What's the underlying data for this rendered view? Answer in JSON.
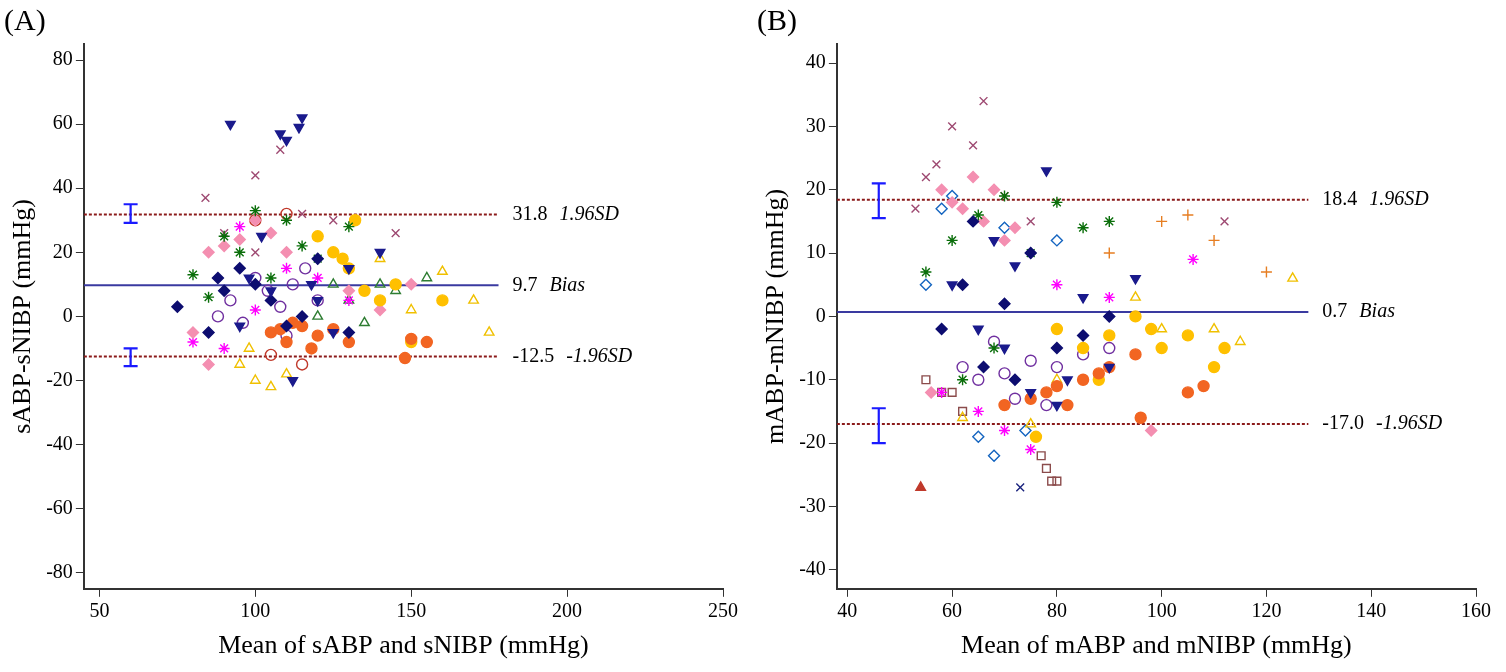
{
  "chart_data": [
    {
      "type": "scatter",
      "title": "(A)",
      "x_label": "Mean of sABP and sNIBP (mmHg)",
      "y_label": "sABP-sNIBP (mmHg)",
      "xlim": [
        45,
        250
      ],
      "xticks": [
        50,
        100,
        150,
        200,
        250
      ],
      "ylim": [
        -85,
        85
      ],
      "yticks": [
        -80,
        -60,
        -40,
        -20,
        0,
        20,
        40,
        60,
        80
      ],
      "grid": false,
      "reference_lines": [
        {
          "y": 31.8,
          "label": "31.8",
          "name": "1.96SD",
          "x_range": [
            45,
            178
          ],
          "color": "#8b1a1a",
          "line_style": "dotted"
        },
        {
          "y": 9.7,
          "label": "9.7",
          "name": "Bias",
          "x_range": [
            45,
            178
          ],
          "color": "#3a3aa0",
          "line_style": "solid"
        },
        {
          "y": -12.5,
          "label": "-12.5",
          "name": "-1.96SD",
          "x_range": [
            45,
            178
          ],
          "color": "#8b1a1a",
          "line_style": "dotted"
        }
      ],
      "error_bars": [
        {
          "x": 60,
          "low": 29.2,
          "high": 35,
          "color": "#1a1aff"
        },
        {
          "x": 60,
          "low": -15.5,
          "high": -10,
          "color": "#1a1aff"
        }
      ],
      "series": [
        {
          "color": "#1a1a8c",
          "marker": "triangle_down",
          "x": [
            92,
            108,
            110,
            115,
            114,
            112,
            105,
            98,
            120,
            130,
            125,
            140,
            102,
            95,
            118
          ],
          "values": [
            60,
            57,
            55,
            62,
            59,
            -20,
            8,
            12,
            5,
            15,
            -5,
            20,
            25,
            -3,
            10
          ]
        },
        {
          "color": "#0d0d70",
          "marker": "diamond",
          "x": [
            75,
            85,
            90,
            100,
            110,
            120,
            105,
            95,
            130,
            115,
            88
          ],
          "values": [
            3,
            -5,
            8,
            10,
            -3,
            18,
            5,
            15,
            -5,
            0,
            12
          ]
        },
        {
          "color": "#0a6e0a",
          "marker": "star",
          "x": [
            80,
            90,
            100,
            110,
            95,
            120,
            105,
            115,
            85,
            130
          ],
          "values": [
            13,
            25,
            33,
            30,
            20,
            18,
            12,
            22,
            6,
            28
          ]
        },
        {
          "color": "#f26522",
          "marker": "circle",
          "x": [
            105,
            110,
            115,
            120,
            125,
            130,
            112,
            150,
            148,
            155,
            118,
            108
          ],
          "values": [
            -5,
            -8,
            -3,
            -6,
            -4,
            -8,
            -2,
            -7,
            -13,
            -8,
            -10,
            -4
          ]
        },
        {
          "color": "#ffc000",
          "marker": "circle",
          "x": [
            120,
            125,
            130,
            135,
            140,
            128,
            132,
            145,
            150,
            160
          ],
          "values": [
            25,
            20,
            15,
            8,
            5,
            18,
            30,
            10,
            -8,
            5
          ]
        },
        {
          "color": "#f48fb1",
          "marker": "diamond",
          "x": [
            85,
            90,
            95,
            100,
            105,
            110,
            130,
            140,
            150,
            80,
            85
          ],
          "values": [
            20,
            22,
            24,
            30,
            26,
            20,
            8,
            2,
            10,
            -5,
            -15
          ]
        },
        {
          "color": "#7030a0",
          "marker": "circle_open",
          "x": [
            88,
            92,
            96,
            100,
            104,
            108,
            112,
            116,
            120,
            110
          ],
          "values": [
            0,
            5,
            -2,
            12,
            8,
            3,
            10,
            15,
            5,
            -6
          ]
        },
        {
          "color": "#f0c000",
          "marker": "triangle_open",
          "x": [
            95,
            100,
            105,
            110,
            150,
            160,
            170,
            175,
            98,
            140
          ],
          "values": [
            -15,
            -20,
            -22,
            -18,
            2,
            14,
            5,
            -5,
            -10,
            18
          ]
        },
        {
          "color": "#ff00ff",
          "marker": "asterisk",
          "x": [
            80,
            90,
            100,
            110,
            120,
            95,
            130
          ],
          "values": [
            -8,
            -10,
            2,
            15,
            12,
            28,
            5
          ]
        },
        {
          "color": "#9e4a72",
          "marker": "x",
          "x": [
            84,
            90,
            100,
            108,
            115,
            125,
            145,
            100
          ],
          "values": [
            37,
            26,
            44,
            52,
            32,
            30,
            26,
            20
          ]
        },
        {
          "color": "#2e7d32",
          "marker": "triangle_open",
          "x": [
            120,
            130,
            135,
            140,
            145,
            125,
            155
          ],
          "values": [
            0,
            5,
            -2,
            10,
            8,
            10,
            12
          ]
        },
        {
          "color": "#c0392b",
          "marker": "circle_open",
          "x": [
            110,
            100,
            105,
            115
          ],
          "values": [
            32,
            30,
            -12,
            -15
          ]
        }
      ]
    },
    {
      "type": "scatter",
      "title": "(B)",
      "x_label": "Mean of mABP and mNIBP (mmHg)",
      "y_label": "mABP-mNIBP (mmHg)",
      "xlim": [
        38,
        160
      ],
      "xticks": [
        40,
        60,
        80,
        100,
        120,
        140,
        160
      ],
      "ylim": [
        -43,
        43
      ],
      "yticks": [
        -40,
        -30,
        -20,
        -10,
        0,
        10,
        20,
        30,
        40
      ],
      "grid": false,
      "reference_lines": [
        {
          "y": 18.4,
          "label": "18.4",
          "name": "1.96SD",
          "x_range": [
            38,
            128
          ],
          "color": "#8b1a1a",
          "line_style": "dotted"
        },
        {
          "y": 0.7,
          "label": "0.7",
          "name": "Bias",
          "x_range": [
            38,
            128
          ],
          "color": "#3a3aa0",
          "line_style": "solid"
        },
        {
          "y": -17.0,
          "label": "-17.0",
          "name": "-1.96SD",
          "x_range": [
            38,
            128
          ],
          "color": "#8b1a1a",
          "line_style": "dotted"
        }
      ],
      "error_bars": [
        {
          "x": 46,
          "low": 15.5,
          "high": 21,
          "color": "#1a1aff"
        },
        {
          "x": 46,
          "low": -20,
          "high": -14.5,
          "color": "#1a1aff"
        }
      ],
      "series": [
        {
          "color": "#1a1a8c",
          "marker": "triangle_down",
          "x": [
            60,
            70,
            75,
            80,
            78,
            65,
            72,
            85,
            90,
            68,
            95,
            82
          ],
          "values": [
            5,
            -5,
            -12,
            -14,
            23,
            -2,
            8,
            3,
            -8,
            12,
            6,
            -10
          ]
        },
        {
          "color": "#0d0d70",
          "marker": "diamond",
          "x": [
            58,
            62,
            66,
            70,
            75,
            80,
            85,
            90,
            64,
            72
          ],
          "values": [
            -2,
            5,
            -8,
            2,
            10,
            -5,
            -3,
            0,
            15,
            -10
          ]
        },
        {
          "color": "#0a6e0a",
          "marker": "star",
          "x": [
            55,
            60,
            65,
            70,
            75,
            80,
            68,
            85,
            90,
            62
          ],
          "values": [
            7,
            12,
            16,
            19,
            10,
            18,
            -5,
            14,
            15,
            -10
          ]
        },
        {
          "color": "#f26522",
          "marker": "circle",
          "x": [
            70,
            75,
            80,
            85,
            90,
            95,
            78,
            96,
            105,
            108,
            88,
            82
          ],
          "values": [
            -14,
            -13,
            -11,
            -10,
            -8,
            -6,
            -12,
            -16,
            -12,
            -11,
            -9,
            -14
          ]
        },
        {
          "color": "#ffc000",
          "marker": "circle",
          "x": [
            80,
            85,
            90,
            95,
            100,
            105,
            110,
            112,
            98,
            76,
            88
          ],
          "values": [
            -2,
            -5,
            -3,
            0,
            -5,
            -3,
            -8,
            -5,
            -2,
            -19,
            -10
          ]
        },
        {
          "color": "#f48fb1",
          "marker": "diamond",
          "x": [
            58,
            60,
            62,
            64,
            66,
            68,
            70,
            72,
            56,
            98
          ],
          "values": [
            20,
            18,
            17,
            22,
            15,
            20,
            12,
            14,
            -12,
            -18
          ]
        },
        {
          "color": "#7030a0",
          "marker": "circle_open",
          "x": [
            62,
            65,
            70,
            75,
            80,
            85,
            90,
            72,
            78,
            68
          ],
          "values": [
            -8,
            -10,
            -9,
            -7,
            -8,
            -6,
            -5,
            -13,
            -14,
            -4
          ]
        },
        {
          "color": "#f0c000",
          "marker": "triangle_open",
          "x": [
            75,
            80,
            100,
            110,
            115,
            125,
            95,
            62
          ],
          "values": [
            -17,
            -10,
            -2,
            -2,
            -4,
            6,
            3,
            -16
          ]
        },
        {
          "color": "#ff00ff",
          "marker": "asterisk",
          "x": [
            58,
            65,
            70,
            75,
            80,
            90,
            106
          ],
          "values": [
            -12,
            -15,
            -18,
            -21,
            5,
            3,
            9
          ]
        },
        {
          "color": "#9e4a72",
          "marker": "x",
          "x": [
            55,
            57,
            60,
            66,
            64,
            70,
            75,
            112,
            53
          ],
          "values": [
            22,
            24,
            30,
            34,
            27,
            19,
            15,
            15,
            17
          ]
        },
        {
          "color": "#1565c0",
          "marker": "diamond_open",
          "x": [
            55,
            58,
            60,
            65,
            68,
            74,
            70,
            80
          ],
          "values": [
            5,
            17,
            19,
            -19,
            -22,
            -18,
            14,
            12
          ]
        },
        {
          "color": "#8b4b4b",
          "marker": "square_open",
          "x": [
            60,
            62,
            78,
            79,
            80,
            77,
            55,
            58
          ],
          "values": [
            -12,
            -15,
            -24,
            -26,
            -26,
            -22,
            -10,
            -12
          ]
        },
        {
          "color": "#c0392b",
          "marker": "triangle",
          "x": [
            54
          ],
          "values": [
            -27
          ]
        },
        {
          "color": "#1a237e",
          "marker": "x",
          "x": [
            73
          ],
          "values": [
            -27
          ]
        },
        {
          "color": "#e67e22",
          "marker": "plus",
          "x": [
            100,
            110,
            105,
            90,
            120
          ],
          "values": [
            15,
            12,
            16,
            10,
            7
          ]
        }
      ]
    }
  ]
}
